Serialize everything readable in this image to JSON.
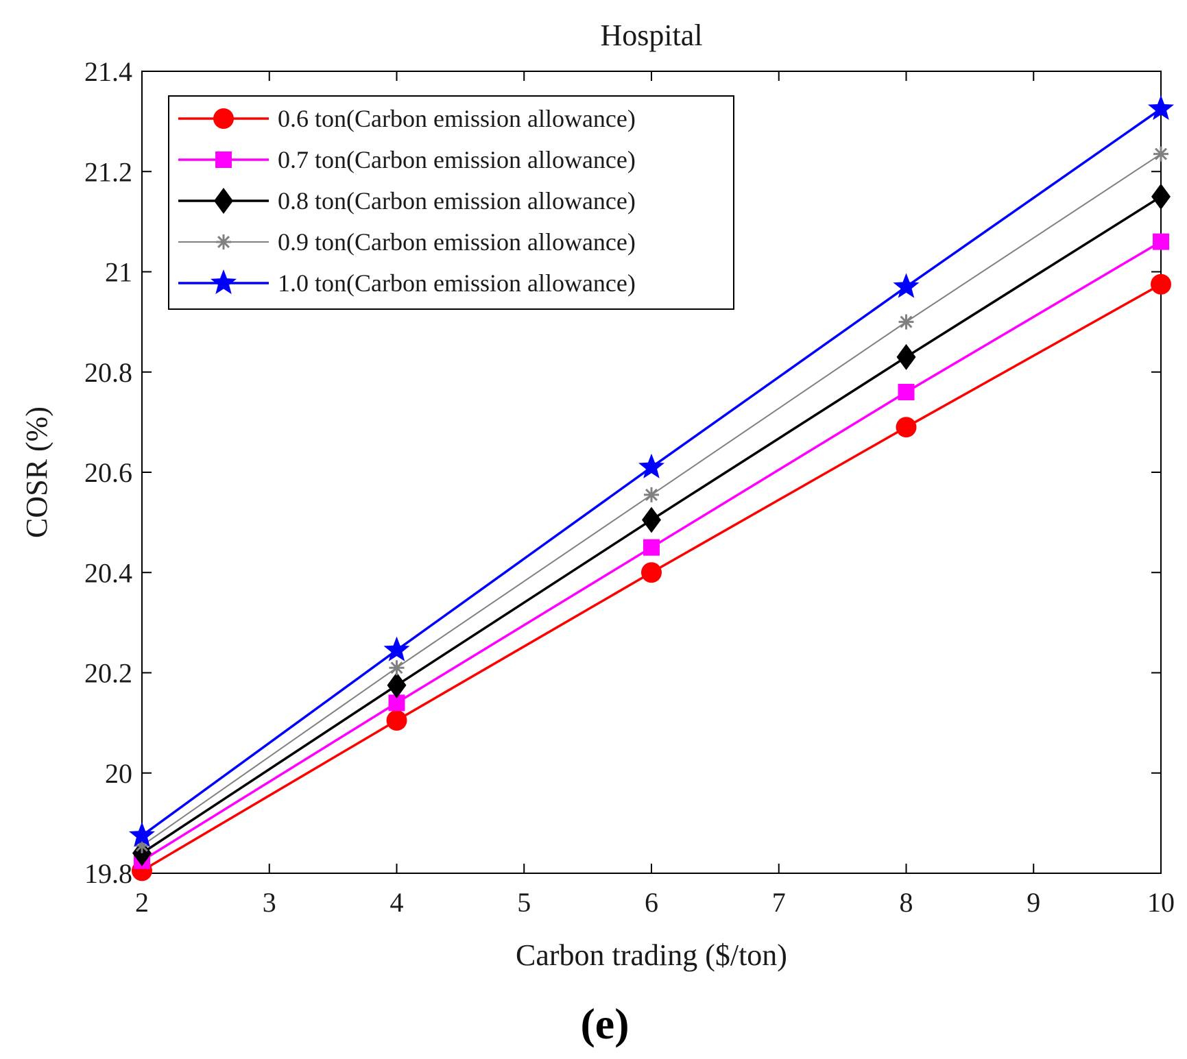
{
  "chart_data": {
    "type": "line",
    "title": "Hospital",
    "xlabel": "Carbon trading ($/ton)",
    "ylabel": "COSR (%)",
    "xlim": [
      2,
      10
    ],
    "ylim": [
      19.8,
      21.4
    ],
    "xticks": [
      2,
      3,
      4,
      5,
      6,
      7,
      8,
      9,
      10
    ],
    "yticks": [
      19.8,
      20,
      20.2,
      20.4,
      20.6,
      20.8,
      21,
      21.2,
      21.4
    ],
    "ytick_labels": [
      "19.8",
      "20",
      "20.2",
      "20.4",
      "20.6",
      "20.8",
      "21",
      "21.2",
      "21.4"
    ],
    "grid": false,
    "legend_position": "top-left",
    "x": [
      2,
      4,
      6,
      8,
      10
    ],
    "series": [
      {
        "name": "0.6 ton(Carbon emission allowance)",
        "color": "#ff0000",
        "marker": "circle",
        "values": [
          19.805,
          20.105,
          20.4,
          20.69,
          20.975
        ]
      },
      {
        "name": "0.7 ton(Carbon emission allowance)",
        "color": "#ff00ff",
        "marker": "square",
        "values": [
          19.825,
          20.14,
          20.45,
          20.76,
          21.06
        ]
      },
      {
        "name": "0.8 ton(Carbon emission allowance)",
        "color": "#000000",
        "marker": "diamond",
        "values": [
          19.84,
          20.175,
          20.505,
          20.83,
          21.15
        ]
      },
      {
        "name": "0.9 ton(Carbon emission allowance)",
        "color": "#808080",
        "marker": "asterisk",
        "values": [
          19.855,
          20.21,
          20.555,
          20.9,
          21.235
        ]
      },
      {
        "name": "1.0 ton(Carbon emission allowance)",
        "color": "#0000ff",
        "marker": "star",
        "values": [
          19.875,
          20.245,
          20.61,
          20.97,
          21.325
        ]
      }
    ]
  },
  "panel_label": "(e)"
}
